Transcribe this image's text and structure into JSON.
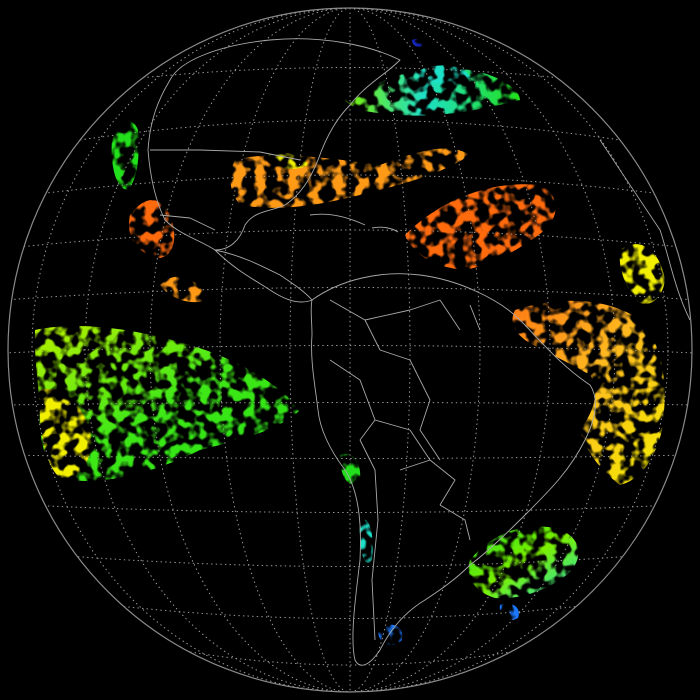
{
  "map": {
    "projection": "orthographic",
    "background": "#000000",
    "graticule": {
      "style": "dotted",
      "color": "#9a9a9a"
    },
    "boundaries": {
      "color": "#a9a9a9"
    },
    "colors": {
      "green": "#22e01a",
      "yellow_green": "#b8f000",
      "yellow": "#f2f000",
      "orange": "#ff9a18",
      "orange_red": "#ff6a10",
      "cyan": "#1fe0c8",
      "blue": "#1a78ff",
      "navy": "#1626b8"
    }
  }
}
